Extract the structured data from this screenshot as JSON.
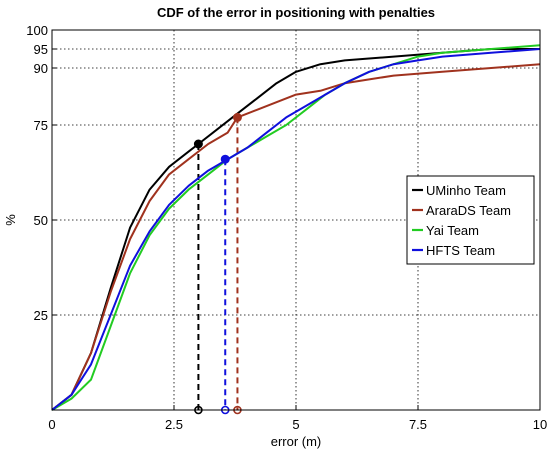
{
  "chart_data": {
    "type": "line",
    "title": "CDF of the error in positioning with penalties",
    "xlabel": "error (m)",
    "ylabel": "%",
    "xlim": [
      0,
      10
    ],
    "ylim": [
      0,
      100
    ],
    "x_ticks": [
      0,
      2.5,
      5,
      7.5,
      10
    ],
    "x_tick_labels": [
      "0",
      "2.5",
      "5",
      "7.5",
      "10"
    ],
    "y_ticks": [
      25,
      50,
      75,
      90,
      95,
      100
    ],
    "y_tick_labels": [
      "25",
      "50",
      "75",
      "90",
      "95",
      "100"
    ],
    "grid": true,
    "legend_position": "right",
    "series": [
      {
        "name": "UMinho Team",
        "color": "#000000",
        "x": [
          0,
          0.4,
          0.8,
          1.2,
          1.6,
          2.0,
          2.4,
          2.8,
          3.0,
          3.4,
          3.8,
          4.2,
          4.6,
          5.0,
          5.5,
          6.0,
          7.0,
          8.0,
          9.0,
          10.0
        ],
        "y": [
          0,
          4,
          15,
          32,
          48,
          58,
          64,
          68,
          70,
          74,
          78,
          82,
          86,
          89,
          91,
          92,
          93,
          94,
          95,
          95
        ],
        "marker": {
          "x": 3.0,
          "y": 70
        }
      },
      {
        "name": "AraraDS Team",
        "color": "#a0321e",
        "x": [
          0,
          0.4,
          0.8,
          1.2,
          1.6,
          2.0,
          2.4,
          2.8,
          3.2,
          3.6,
          3.8,
          4.2,
          4.6,
          5.0,
          5.5,
          6.0,
          6.5,
          7.0,
          8.0,
          9.0,
          10.0
        ],
        "y": [
          0,
          4,
          15,
          31,
          45,
          55,
          62,
          66,
          70,
          73,
          77,
          79,
          81,
          83,
          84,
          86,
          87,
          88,
          89,
          90,
          91
        ],
        "marker": {
          "x": 3.8,
          "y": 77
        }
      },
      {
        "name": "Yai Team",
        "color": "#22cc22",
        "x": [
          0,
          0.4,
          0.8,
          1.2,
          1.6,
          2.0,
          2.4,
          2.8,
          3.2,
          3.6,
          4.0,
          4.4,
          4.8,
          5.2,
          5.6,
          6.0,
          6.5,
          7.0,
          7.5,
          8.0,
          9.0,
          10.0
        ],
        "y": [
          0,
          3,
          8,
          22,
          36,
          46,
          53,
          58,
          62,
          66,
          69,
          72,
          75,
          79,
          83,
          86,
          89,
          91,
          93,
          94,
          95,
          96
        ],
        "marker": null
      },
      {
        "name": "HFTS Team",
        "color": "#1010dd",
        "x": [
          0,
          0.4,
          0.8,
          1.2,
          1.6,
          2.0,
          2.4,
          2.8,
          3.2,
          3.6,
          4.0,
          4.4,
          4.8,
          5.2,
          5.6,
          6.0,
          6.5,
          7.0,
          7.5,
          8.0,
          9.0,
          10.0
        ],
        "y": [
          0,
          4,
          12,
          25,
          38,
          47,
          54,
          59,
          63,
          66,
          69,
          73,
          77,
          80,
          83,
          86,
          89,
          91,
          92,
          93,
          94,
          95
        ],
        "marker": {
          "x": 3.55,
          "y": 66
        }
      }
    ]
  }
}
